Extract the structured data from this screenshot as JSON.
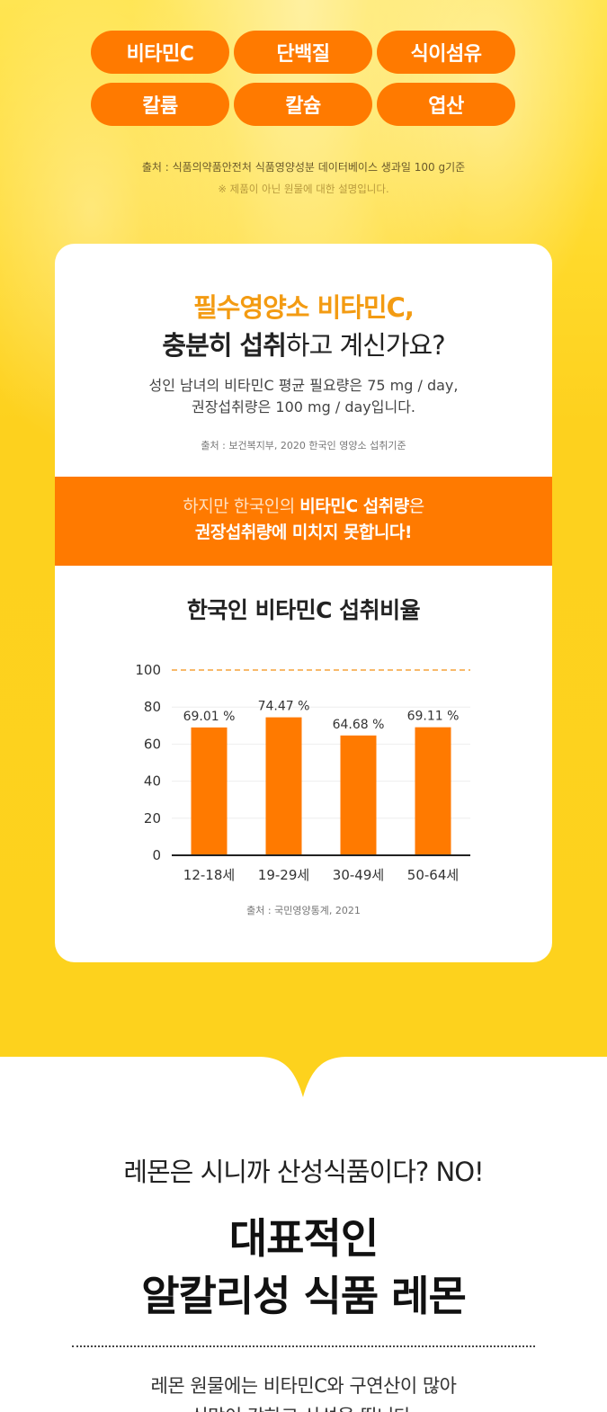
{
  "nutrients": [
    "비타민C",
    "단백질",
    "식이섬유",
    "칼륨",
    "칼슘",
    "엽산"
  ],
  "top_source": "출처 : 식품의약품안전처 식품영양성분 데이터베이스 생과일 100 g기준",
  "top_note": "※ 제품이 아닌 원물에 대한 설명입니다.",
  "card": {
    "title1": "필수영양소 비타민C,",
    "title2_bold": "충분히 섭취",
    "title2_rest": "하고 계신가요?",
    "body_line1": "성인 남녀의 비타민C 평균 필요량은 75 mg / day,",
    "body_line2": "권장섭취량은 100 mg / day입니다.",
    "source": "출처 : 보건복지부, 2020 한국인 영양소 섭취기준",
    "band_line1_light": "하지만 한국인의 ",
    "band_line1_bold": "비타민C 섭취량",
    "band_line1_end": "은",
    "band_line2": "권장섭취량에 미치지 못합니다!",
    "chart_title": "한국인 비타민C 섭취비율",
    "chart_source": "출처 : 국민영양통계, 2021"
  },
  "chart_data": {
    "type": "bar",
    "title": "한국인 비타민C 섭취비율",
    "categories": [
      "12-18세",
      "19-29세",
      "30-49세",
      "50-64세"
    ],
    "values": [
      69.01,
      74.47,
      64.68,
      69.11
    ],
    "data_labels": [
      "69.01 %",
      "74.47 %",
      "64.68 %",
      "69.11 %"
    ],
    "yticks": [
      0,
      20,
      40,
      60,
      80,
      100
    ],
    "ylim": [
      0,
      100
    ],
    "reference_line": 100,
    "bar_color": "#ff7a00",
    "reference_color": "#f5a23a",
    "grid": true
  },
  "bottom": {
    "line1": "레몬은 시니까 산성식품이다? NO!",
    "headline1": "대표적인",
    "headline2": "알칼리성 식품 레몬",
    "body1": "레몬 원물에는 비타민C와 구연산이 많아",
    "body2": "신맛이 강하고 산성을 띕니다."
  },
  "colors": {
    "accent": "#ff7a00",
    "yellow": "#fdd21d",
    "title_orange": "#f39b12"
  }
}
